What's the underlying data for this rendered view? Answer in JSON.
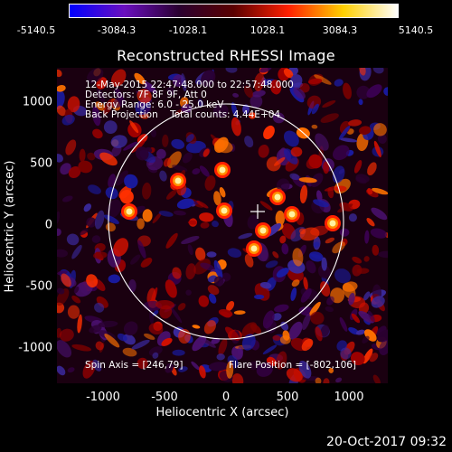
{
  "colorbar": {
    "ticks": [
      "-5140.5",
      "-3084.3",
      "-1028.1",
      "1028.1",
      "3084.3",
      "5140.5"
    ],
    "colors": [
      "#0000ff",
      "#6a0fbf",
      "#2a0030",
      "#5a0000",
      "#ff2000",
      "#ffd000",
      "#ffffff"
    ]
  },
  "title": "Reconstructed RHESSI Image",
  "annotations": {
    "time": "12-May-2015 22:47:48.000 to 22:57:48.000",
    "detectors": "Detectors: 7F 8F 9F, Att 0",
    "energy": "Energy Range: 6.0 - 25.0 keV",
    "method": "Back Projection    Total counts: 4.44E+04",
    "spin_axis": "Spin Axis = [246,79]",
    "flare_position": "Flare Position = [-802,106]"
  },
  "axes": {
    "xlabel": "Heliocentric X (arcsec)",
    "ylabel": "Heliocentric Y (arcsec)",
    "xticks": [
      "-1000",
      "-500",
      "0",
      "500",
      "1000"
    ],
    "yticks": [
      "1000",
      "500",
      "0",
      "-500",
      "-1000"
    ]
  },
  "footer": "20-Oct-2017 09:32"
}
